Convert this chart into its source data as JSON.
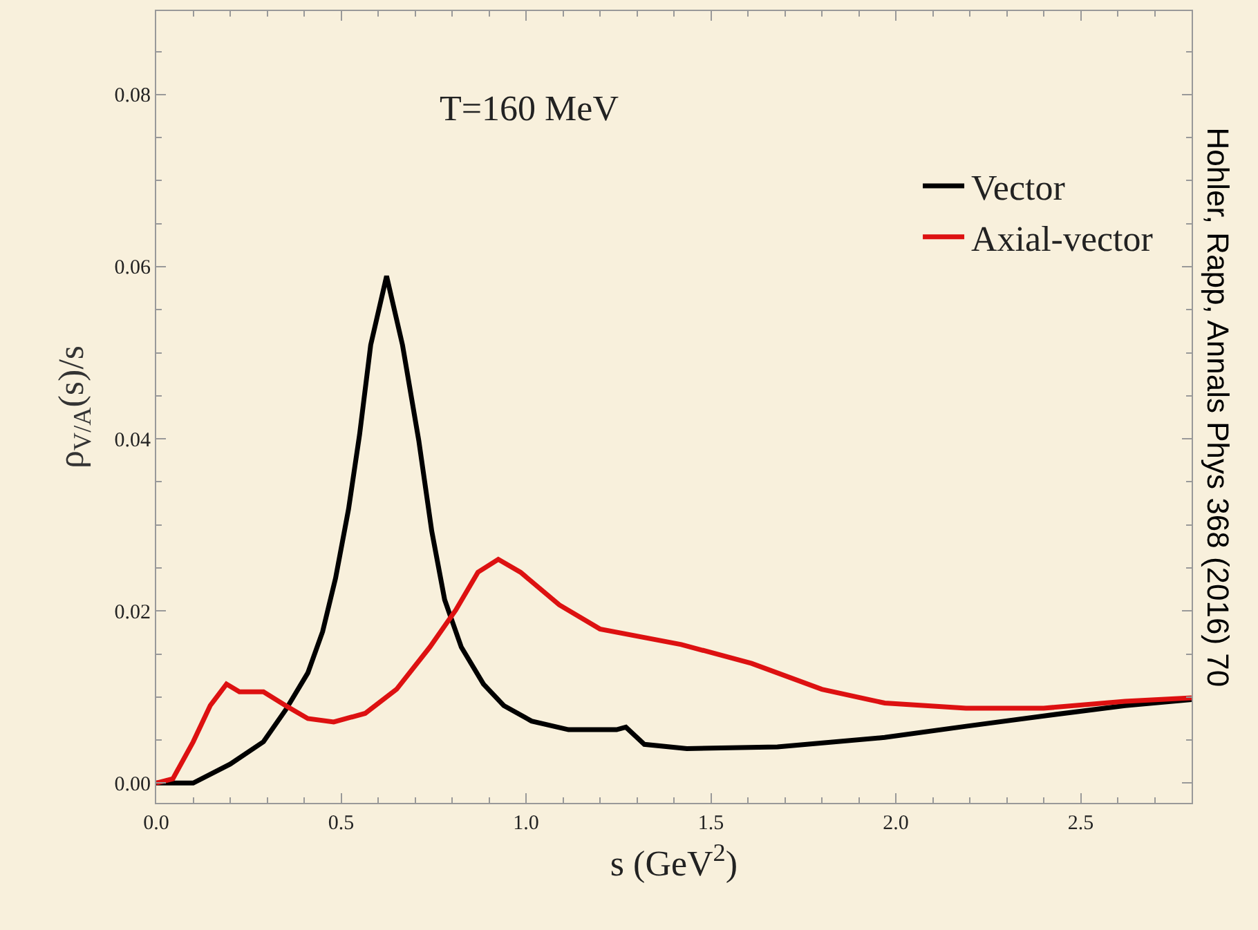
{
  "chart_data": {
    "type": "line",
    "xlabel": "s (GeV$^{2}$)",
    "ylabel": "ρ$_{V/A}$(s)/s",
    "annotations": [
      "T=160 MeV",
      "Hohler, Rapp, Annals Phys 368 (2016) 70"
    ],
    "xlim": [
      0,
      2.8
    ],
    "ylim": [
      -0.0023,
      0.0897
    ],
    "xticks": [
      {
        "value": 0,
        "label": "0.0"
      },
      {
        "value": 0.5,
        "label": "0.5"
      },
      {
        "value": 1,
        "label": "1.0"
      },
      {
        "value": 1.5,
        "label": "1.5"
      },
      {
        "value": 2,
        "label": "2.0"
      },
      {
        "value": 2.5,
        "label": "2.5"
      }
    ],
    "yticks": [
      {
        "value": 0,
        "label": "0.00"
      },
      {
        "value": 0.02,
        "label": "0.02"
      },
      {
        "value": 0.04,
        "label": "0.04"
      },
      {
        "value": 0.06,
        "label": "0.06"
      },
      {
        "value": 0.08,
        "label": "0.08"
      }
    ],
    "grid": false,
    "legend": "top right",
    "line_style": "solid",
    "marker": "none",
    "series": [
      {
        "name": "Vector",
        "color": "#000000",
        "x": [
          0,
          0.1,
          0.2,
          0.29,
          0.35,
          0.41,
          0.45,
          0.485,
          0.52,
          0.55,
          0.58,
          0.623,
          0.666,
          0.71,
          0.745,
          0.78,
          0.825,
          0.885,
          0.94,
          1.015,
          1.115,
          1.245,
          1.27,
          1.32,
          1.435,
          1.68,
          1.97,
          2.19,
          2.4,
          2.62,
          2.8
        ],
        "values": [
          0,
          0,
          0.0022,
          0.0048,
          0.0085,
          0.0128,
          0.0176,
          0.0238,
          0.0318,
          0.0405,
          0.0509,
          0.0589,
          0.0509,
          0.0398,
          0.0293,
          0.0213,
          0.0158,
          0.0115,
          0.009,
          0.0072,
          0.0062,
          0.0062,
          0.0065,
          0.0045,
          0.004,
          0.0042,
          0.0053,
          0.0066,
          0.0078,
          0.009,
          0.0097
        ]
      },
      {
        "name": "Axial-vector",
        "color": "#dd1111",
        "x": [
          0,
          0.045,
          0.1,
          0.146,
          0.19,
          0.225,
          0.29,
          0.35,
          0.41,
          0.48,
          0.565,
          0.65,
          0.74,
          0.81,
          0.87,
          0.925,
          0.985,
          1.09,
          1.2,
          1.42,
          1.61,
          1.8,
          1.97,
          2.19,
          2.4,
          2.62,
          2.8
        ],
        "values": [
          0,
          0.0005,
          0.0048,
          0.009,
          0.0115,
          0.0106,
          0.0106,
          0.009,
          0.0075,
          0.0071,
          0.0081,
          0.0109,
          0.0158,
          0.0201,
          0.0245,
          0.026,
          0.0245,
          0.0207,
          0.0179,
          0.0161,
          0.0139,
          0.0109,
          0.0093,
          0.0087,
          0.0087,
          0.0095,
          0.0099
        ]
      }
    ]
  }
}
